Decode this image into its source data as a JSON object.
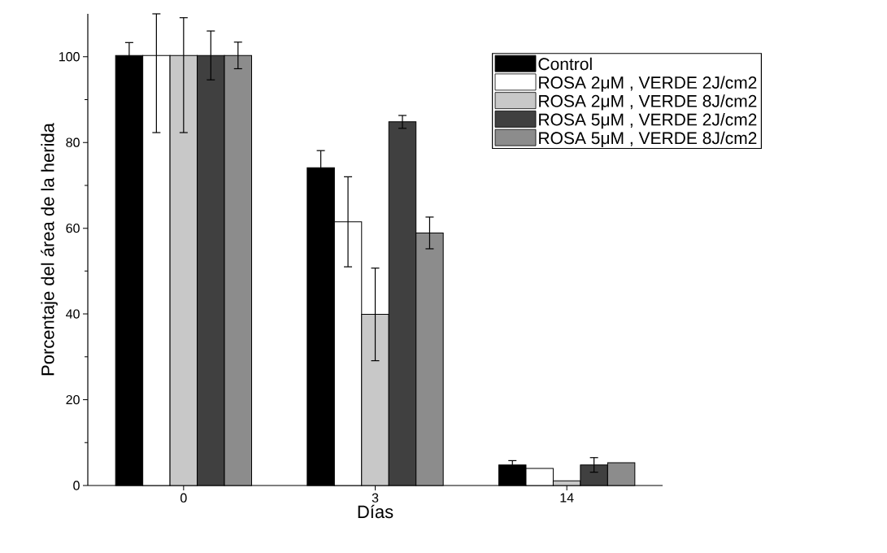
{
  "chart_data": {
    "type": "bar",
    "xlabel": "Días",
    "ylabel": "Porcentaje del área de la herida",
    "categories": [
      "0",
      "3",
      "14"
    ],
    "series": [
      {
        "name": "Control",
        "color": "#000000",
        "values": [
          100.3,
          74.1,
          4.8
        ],
        "errors": [
          3,
          4,
          1
        ]
      },
      {
        "name": "ROSA 2μM , VERDE 2J/cm2",
        "color": "#ffffff",
        "values": [
          100.3,
          61.5,
          4.0
        ],
        "errors": [
          [
            82.3,
            110
          ],
          10.5,
          null
        ]
      },
      {
        "name": "ROSA 2μM , VERDE 8J/cm2",
        "color": "#c8c8c8",
        "values": [
          100.3,
          39.9,
          1.1
        ],
        "errors": [
          [
            82.3,
            109.1
          ],
          10.8,
          null
        ]
      },
      {
        "name": "ROSA 5μM , VERDE 2J/cm2",
        "color": "#404040",
        "values": [
          100.3,
          84.8,
          4.8
        ],
        "errors": [
          5.7,
          1.5,
          1.7
        ]
      },
      {
        "name": "ROSA 5μM , VERDE 8J/cm2",
        "color": "#8c8c8c",
        "values": [
          100.3,
          58.9,
          5.3
        ],
        "errors": [
          3.1,
          3.7,
          null
        ]
      }
    ],
    "ylim": [
      0,
      110
    ],
    "yticks": [
      0,
      20,
      40,
      60,
      80,
      100
    ],
    "grid": false,
    "legend": "top right"
  }
}
